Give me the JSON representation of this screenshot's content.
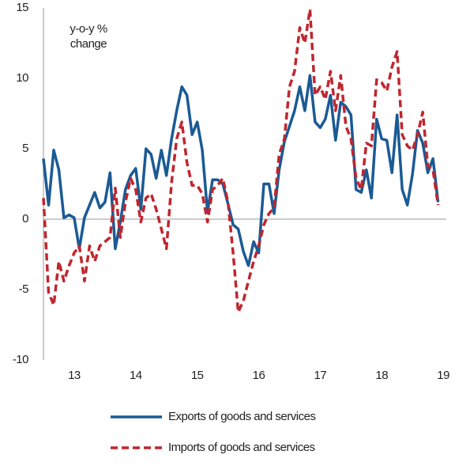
{
  "chart_data": {
    "type": "line",
    "annotation_lines": [
      "y-o-y %",
      "change"
    ],
    "x": [
      2012.5,
      2012.583,
      2012.667,
      2012.75,
      2012.833,
      2012.917,
      2013.0,
      2013.083,
      2013.167,
      2013.25,
      2013.333,
      2013.417,
      2013.5,
      2013.583,
      2013.667,
      2013.75,
      2013.833,
      2013.917,
      2014.0,
      2014.083,
      2014.167,
      2014.25,
      2014.333,
      2014.417,
      2014.5,
      2014.583,
      2014.667,
      2014.75,
      2014.833,
      2014.917,
      2015.0,
      2015.083,
      2015.167,
      2015.25,
      2015.333,
      2015.417,
      2015.5,
      2015.583,
      2015.667,
      2015.75,
      2015.833,
      2015.917,
      2016.0,
      2016.083,
      2016.167,
      2016.25,
      2016.333,
      2016.417,
      2016.5,
      2016.583,
      2016.667,
      2016.75,
      2016.833,
      2016.917,
      2017.0,
      2017.083,
      2017.167,
      2017.25,
      2017.333,
      2017.417,
      2017.5,
      2017.583,
      2017.667,
      2017.75,
      2017.833,
      2017.917,
      2018.0,
      2018.083,
      2018.167,
      2018.25,
      2018.333,
      2018.417,
      2018.5,
      2018.583,
      2018.667,
      2018.75,
      2018.833,
      2018.917
    ],
    "series": [
      {
        "name": "Exports of goods and services",
        "color": "#1b5a94",
        "dash": false,
        "values": [
          4.3,
          1,
          4.9,
          3.5,
          0.1,
          0.3,
          0.1,
          -2.1,
          0.1,
          1,
          1.9,
          0.8,
          1.2,
          3.3,
          -2.1,
          -0.2,
          2.1,
          3.1,
          3.6,
          0.7,
          5,
          4.6,
          2.9,
          4.9,
          3.1,
          5.7,
          7.7,
          9.4,
          8.8,
          6,
          6.9,
          4.9,
          0.5,
          2.8,
          2.8,
          2.5,
          1.1,
          -0.4,
          -0.7,
          -2.3,
          -3.3,
          -1.6,
          -2.4,
          2.5,
          2.5,
          0.4,
          3.5,
          5.5,
          6.6,
          7.7,
          9.4,
          7.7,
          10.2,
          6.9,
          6.5,
          7.1,
          8.8,
          5.6,
          8.3,
          8,
          7.4,
          2.1,
          1.9,
          3.5,
          1.5,
          7.1,
          5.7,
          5.6,
          3.3,
          7.4,
          2.1,
          1,
          3.2,
          6.3,
          5.4,
          3.3,
          4.3,
          1.2
        ]
      },
      {
        "name": "Imports of goods and services",
        "color": "#c0262e",
        "dash": true,
        "values": [
          1.5,
          -5.2,
          -6.1,
          -3,
          -4.4,
          -3.3,
          -2.4,
          -1.9,
          -4.4,
          -1.9,
          -3,
          -1.9,
          -1.6,
          -1.3,
          2.2,
          -1.3,
          1.2,
          2.9,
          2.1,
          -0.2,
          1.5,
          1.8,
          0.7,
          -0.7,
          -2.1,
          2.6,
          5.7,
          6.9,
          4,
          2.4,
          2.4,
          1.8,
          -0.2,
          2.1,
          2.4,
          2.9,
          1.2,
          -2.4,
          -6.6,
          -5.8,
          -4.4,
          -3,
          -1.9,
          -0.4,
          0.4,
          0.8,
          4.6,
          5.7,
          9.4,
          10.5,
          13.6,
          12.5,
          14.9,
          8.8,
          9.4,
          8.5,
          10.5,
          7.7,
          10.2,
          6.6,
          5.7,
          2.9,
          2.1,
          5.4,
          5.2,
          9.9,
          9.7,
          9.1,
          10.8,
          11.9,
          6,
          5.2,
          4.9,
          6,
          7.6,
          3.8,
          3.5,
          1
        ]
      }
    ],
    "xlim": [
      2012.5,
      2019.05
    ],
    "xticks": [
      {
        "value": 2013,
        "label": "13"
      },
      {
        "value": 2014,
        "label": "14"
      },
      {
        "value": 2015,
        "label": "15"
      },
      {
        "value": 2016,
        "label": "16"
      },
      {
        "value": 2017,
        "label": "17"
      },
      {
        "value": 2018,
        "label": "18"
      },
      {
        "value": 2019,
        "label": "19"
      }
    ],
    "ylim": [
      -10,
      15
    ],
    "yticks": [
      -10,
      -5,
      0,
      5,
      10,
      15
    ],
    "grid": false,
    "legend": "bottom"
  }
}
